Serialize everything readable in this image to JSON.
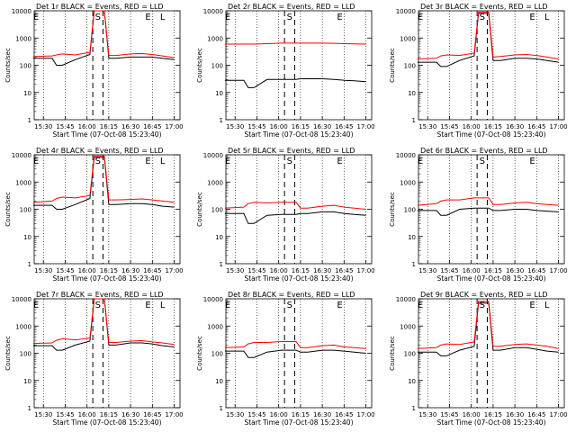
{
  "x_tick_labels": [
    "15:30",
    "15:45",
    "16:00",
    "16:15",
    "16:30",
    "16:45",
    "17:00"
  ],
  "y_tick_labels": [
    "1",
    "10",
    "100",
    "1000",
    "10000"
  ],
  "ylabel": "Counts/sec",
  "xlabel": "Start Time (07-Oct-08 15:23:40)",
  "colors": {
    "events": "#000000",
    "lld": "#ff0000",
    "background": "#ffffff"
  },
  "chart_data": [
    {
      "type": "line",
      "title": "Det 1r  BLACK = Events, RED = LLD",
      "markers": [
        "E",
        "S",
        "E",
        "L"
      ],
      "ylim": [
        1,
        10000
      ],
      "scale": "log",
      "x": [
        "15:23",
        "15:36",
        "15:39",
        "15:43",
        "15:52",
        "16:02",
        "16:05",
        "16:09",
        "16:12",
        "16:15",
        "16:20",
        "16:30",
        "16:38",
        "16:45",
        "16:52",
        "17:00"
      ],
      "series": [
        {
          "name": "Events",
          "values": [
            180,
            180,
            100,
            100,
            160,
            250,
            10000,
            10000,
            10000,
            180,
            180,
            200,
            200,
            200,
            180,
            160
          ]
        },
        {
          "name": "LLD",
          "values": [
            210,
            220,
            240,
            260,
            240,
            300,
            10000,
            10000,
            10000,
            230,
            230,
            260,
            270,
            250,
            220,
            190
          ]
        }
      ]
    },
    {
      "type": "line",
      "title": "Det 2r  BLACK = Events, RED = LLD",
      "markers": [
        "E",
        "S",
        "E"
      ],
      "ylim": [
        1,
        10000
      ],
      "scale": "log",
      "x": [
        "15:23",
        "15:36",
        "15:39",
        "15:43",
        "15:52",
        "16:02",
        "16:05",
        "16:09",
        "16:12",
        "16:15",
        "16:20",
        "16:30",
        "16:38",
        "16:45",
        "16:52",
        "17:00"
      ],
      "series": [
        {
          "name": "Events",
          "values": [
            28,
            28,
            15,
            15,
            30,
            30,
            30,
            30,
            30,
            32,
            32,
            32,
            30,
            28,
            27,
            25
          ]
        },
        {
          "name": "LLD",
          "values": [
            600,
            600,
            600,
            600,
            620,
            650,
            650,
            650,
            650,
            650,
            650,
            650,
            640,
            620,
            610,
            600
          ]
        }
      ]
    },
    {
      "type": "line",
      "title": "Det 3r  BLACK = Events, RED = LLD",
      "markers": [
        "E",
        "S",
        "E",
        "L"
      ],
      "ylim": [
        1,
        10000
      ],
      "scale": "log",
      "x": [
        "15:23",
        "15:36",
        "15:39",
        "15:43",
        "15:52",
        "16:02",
        "16:05",
        "16:09",
        "16:12",
        "16:15",
        "16:20",
        "16:30",
        "16:38",
        "16:45",
        "16:52",
        "17:00"
      ],
      "series": [
        {
          "name": "Events",
          "values": [
            130,
            130,
            90,
            90,
            150,
            220,
            8000,
            8000,
            8000,
            150,
            150,
            180,
            180,
            170,
            150,
            130
          ]
        },
        {
          "name": "LLD",
          "values": [
            170,
            180,
            220,
            240,
            230,
            280,
            9000,
            9000,
            9000,
            200,
            210,
            240,
            250,
            230,
            200,
            170
          ]
        }
      ]
    },
    {
      "type": "line",
      "title": "Det 4r  BLACK = Events, RED = LLD",
      "markers": [
        "E",
        "S",
        "E",
        "L"
      ],
      "ylim": [
        1,
        10000
      ],
      "scale": "log",
      "x": [
        "15:23",
        "15:36",
        "15:39",
        "15:43",
        "15:52",
        "16:02",
        "16:05",
        "16:09",
        "16:12",
        "16:15",
        "16:20",
        "16:30",
        "16:38",
        "16:45",
        "16:52",
        "17:00"
      ],
      "series": [
        {
          "name": "Events",
          "values": [
            140,
            140,
            100,
            100,
            150,
            250,
            8000,
            8000,
            8000,
            150,
            150,
            160,
            160,
            150,
            130,
            120
          ]
        },
        {
          "name": "LLD",
          "values": [
            180,
            200,
            250,
            280,
            260,
            320,
            9000,
            9000,
            9000,
            220,
            220,
            230,
            240,
            220,
            200,
            180
          ]
        }
      ]
    },
    {
      "type": "line",
      "title": "Det 5r  BLACK = Events, RED = LLD",
      "markers": [
        "E",
        "S",
        "E"
      ],
      "ylim": [
        1,
        10000
      ],
      "scale": "log",
      "x": [
        "15:23",
        "15:36",
        "15:39",
        "15:43",
        "15:52",
        "16:02",
        "16:05",
        "16:09",
        "16:12",
        "16:15",
        "16:20",
        "16:30",
        "16:38",
        "16:45",
        "16:52",
        "17:00"
      ],
      "series": [
        {
          "name": "Events",
          "values": [
            70,
            70,
            30,
            30,
            60,
            65,
            65,
            65,
            65,
            70,
            70,
            80,
            80,
            70,
            65,
            60
          ]
        },
        {
          "name": "LLD",
          "values": [
            110,
            120,
            160,
            180,
            170,
            180,
            180,
            180,
            180,
            110,
            110,
            130,
            140,
            120,
            110,
            100
          ]
        }
      ]
    },
    {
      "type": "line",
      "title": "Det 6r  BLACK = Events, RED = LLD",
      "markers": [
        "E",
        "S",
        "E"
      ],
      "ylim": [
        1,
        10000
      ],
      "scale": "log",
      "x": [
        "15:23",
        "15:36",
        "15:39",
        "15:43",
        "15:52",
        "16:02",
        "16:05",
        "16:09",
        "16:12",
        "16:15",
        "16:20",
        "16:30",
        "16:38",
        "16:45",
        "16:52",
        "17:00"
      ],
      "series": [
        {
          "name": "Events",
          "values": [
            90,
            90,
            60,
            60,
            100,
            110,
            110,
            110,
            110,
            90,
            90,
            100,
            100,
            90,
            85,
            80
          ]
        },
        {
          "name": "LLD",
          "values": [
            140,
            160,
            200,
            220,
            220,
            260,
            260,
            260,
            260,
            150,
            150,
            170,
            180,
            160,
            150,
            140
          ]
        }
      ]
    },
    {
      "type": "line",
      "title": "Det 7r  BLACK = Events, RED = LLD",
      "markers": [
        "E",
        "S",
        "E",
        "L"
      ],
      "ylim": [
        1,
        10000
      ],
      "scale": "log",
      "x": [
        "15:23",
        "15:36",
        "15:39",
        "15:43",
        "15:52",
        "16:02",
        "16:05",
        "16:09",
        "16:12",
        "16:15",
        "16:20",
        "16:30",
        "16:38",
        "16:45",
        "16:52",
        "17:00"
      ],
      "series": [
        {
          "name": "Events",
          "values": [
            190,
            190,
            130,
            130,
            200,
            280,
            10000,
            10000,
            10000,
            200,
            200,
            240,
            240,
            220,
            190,
            170
          ]
        },
        {
          "name": "LLD",
          "values": [
            230,
            240,
            300,
            340,
            310,
            360,
            10000,
            10000,
            10000,
            250,
            250,
            280,
            290,
            260,
            240,
            210
          ]
        }
      ]
    },
    {
      "type": "line",
      "title": "Det 8r  BLACK = Events, RED = LLD",
      "markers": [
        "E",
        "S",
        "E"
      ],
      "ylim": [
        1,
        10000
      ],
      "scale": "log",
      "x": [
        "15:23",
        "15:36",
        "15:39",
        "15:43",
        "15:52",
        "16:02",
        "16:05",
        "16:09",
        "16:12",
        "16:15",
        "16:20",
        "16:30",
        "16:38",
        "16:45",
        "16:52",
        "17:00"
      ],
      "series": [
        {
          "name": "Events",
          "values": [
            120,
            120,
            70,
            70,
            110,
            130,
            130,
            130,
            130,
            110,
            110,
            130,
            130,
            120,
            110,
            100
          ]
        },
        {
          "name": "LLD",
          "values": [
            160,
            170,
            220,
            250,
            250,
            270,
            270,
            270,
            270,
            160,
            160,
            190,
            200,
            170,
            160,
            150
          ]
        }
      ]
    },
    {
      "type": "line",
      "title": "Det 9r  BLACK = Events, RED = LLD",
      "markers": [
        "E",
        "S",
        "E",
        "L"
      ],
      "ylim": [
        1,
        10000
      ],
      "scale": "log",
      "x": [
        "15:23",
        "15:36",
        "15:39",
        "15:43",
        "15:52",
        "16:02",
        "16:05",
        "16:09",
        "16:12",
        "16:15",
        "16:20",
        "16:30",
        "16:38",
        "16:45",
        "16:52",
        "17:00"
      ],
      "series": [
        {
          "name": "Events",
          "values": [
            110,
            110,
            80,
            80,
            130,
            180,
            7000,
            7000,
            7000,
            130,
            130,
            160,
            160,
            140,
            120,
            110
          ]
        },
        {
          "name": "LLD",
          "values": [
            150,
            160,
            200,
            220,
            210,
            260,
            8000,
            8000,
            8000,
            180,
            180,
            210,
            220,
            200,
            180,
            150
          ]
        }
      ]
    }
  ]
}
